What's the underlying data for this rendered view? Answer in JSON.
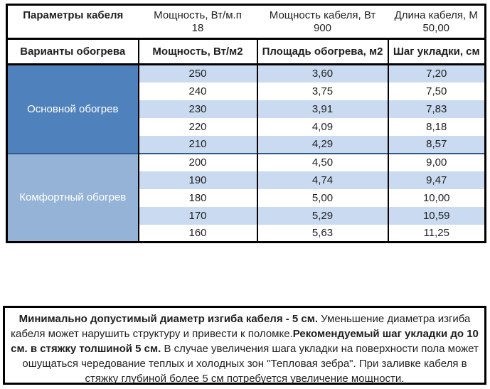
{
  "header": {
    "col1_title": "Параметры кабеля",
    "params": [
      {
        "label": "Мощность, Вт/м.п",
        "value": "18"
      },
      {
        "label": "Мощность кабеля, Вт",
        "value": "900"
      },
      {
        "label": "Длина кабеля, М",
        "value": "50,00"
      }
    ]
  },
  "columns": {
    "c0": "Варианты обогрева",
    "c1": "Мощность, Вт/м2",
    "c2": "Площадь обогрева, м2",
    "c3": "Шаг укладки, см"
  },
  "sections": [
    {
      "label": "Основной обогрев",
      "fill": "#4f81bd",
      "rows": [
        [
          "250",
          "3,60",
          "7,20"
        ],
        [
          "240",
          "3,75",
          "7,50"
        ],
        [
          "230",
          "3,91",
          "7,83"
        ],
        [
          "220",
          "4,09",
          "8,18"
        ],
        [
          "210",
          "4,29",
          "8,57"
        ]
      ]
    },
    {
      "label": "Комфортный обогрев",
      "fill": "#95b3d7",
      "rows": [
        [
          "200",
          "4,50",
          "9,00"
        ],
        [
          "190",
          "4,74",
          "9,47"
        ],
        [
          "180",
          "5,00",
          "10,00"
        ],
        [
          "170",
          "5,29",
          "10,59"
        ],
        [
          "160",
          "5,63",
          "11,25"
        ]
      ]
    }
  ],
  "stripe_color": "#c9daf1",
  "note": {
    "segments": [
      {
        "text": "Минимально допустимый диаметр изгиба кабеля - 5 см.",
        "bold": true
      },
      {
        "text": "  Уменьшение диаметра изгиба кабеля может нарушить структуру и привести к поломке.",
        "bold": false
      },
      {
        "text": "Рекомендуемый шаг укладки до 10 см. в стяжку толшиной 5 см.",
        "bold": true
      },
      {
        "text": " В  случае увеличения шага укладки на поверхности пола может ошущаться чередование теплых и холодных зон \"Тепловая зебра\". При заливке кабеля в стяжку глубиной более 5 см потребуется увеличение мощности.",
        "bold": false
      }
    ]
  },
  "colors": {
    "section_main": "#4f81bd",
    "section_comfort": "#95b3d7",
    "row_stripe": "#c9daf1",
    "section_divider": "#30598c",
    "border": "#000000",
    "section_text": "#ffffff"
  }
}
